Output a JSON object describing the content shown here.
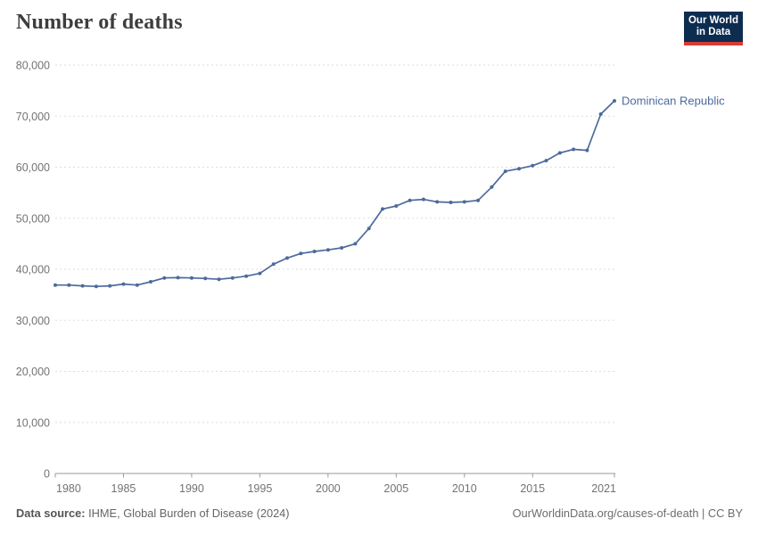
{
  "header": {
    "title": "Number of deaths"
  },
  "logo": {
    "line1": "Our World",
    "line2": "in Data",
    "bg_color": "#0d2d50",
    "accent_color": "#d93a34"
  },
  "chart_data": {
    "type": "line",
    "title": "Number of deaths",
    "entity_label": "Dominican Republic",
    "line_color": "#4c6a9c",
    "grid": "horizontal-dashed",
    "legend_position": "end-of-line",
    "xlim": [
      1980,
      2021
    ],
    "ylim": [
      0,
      80000
    ],
    "x_ticks": [
      1980,
      1985,
      1990,
      1995,
      2000,
      2005,
      2010,
      2015,
      2021
    ],
    "y_ticks": [
      0,
      10000,
      20000,
      30000,
      40000,
      50000,
      60000,
      70000,
      80000
    ],
    "x": [
      1980,
      1981,
      1982,
      1983,
      1984,
      1985,
      1986,
      1987,
      1988,
      1989,
      1990,
      1991,
      1992,
      1993,
      1994,
      1995,
      1996,
      1997,
      1998,
      1999,
      2000,
      2001,
      2002,
      2003,
      2004,
      2005,
      2006,
      2007,
      2008,
      2009,
      2010,
      2011,
      2012,
      2013,
      2014,
      2015,
      2016,
      2017,
      2018,
      2019,
      2020,
      2021
    ],
    "series": [
      {
        "name": "Dominican Republic",
        "color": "#4c6a9c",
        "values": [
          36900,
          36900,
          36750,
          36650,
          36750,
          37100,
          36900,
          37550,
          38300,
          38350,
          38300,
          38200,
          38050,
          38300,
          38650,
          39200,
          41000,
          42200,
          43100,
          43500,
          43800,
          44200,
          45000,
          48000,
          51800,
          52400,
          53500,
          53700,
          53200,
          53100,
          53200,
          53500,
          56100,
          59200,
          59700,
          60300,
          61300,
          62800,
          63500,
          63300,
          70400,
          73000
        ]
      }
    ]
  },
  "footer": {
    "source_label": "Data source:",
    "source_value": " IHME, Global Burden of Disease (2024)",
    "right_text": "OurWorldinData.org/causes-of-death | CC BY"
  }
}
